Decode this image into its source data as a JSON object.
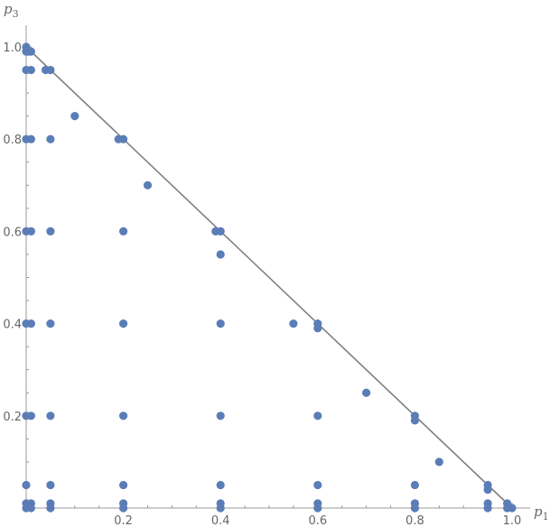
{
  "chart_data": {
    "type": "scatter",
    "xlabel": "p",
    "xlabel_sub": "1",
    "ylabel": "p",
    "ylabel_sub": "3",
    "xlim": [
      0,
      1.0
    ],
    "ylim": [
      0,
      1.0
    ],
    "x_ticks": [
      {
        "value": 0.2,
        "label": "0.2"
      },
      {
        "value": 0.4,
        "label": "0.4"
      },
      {
        "value": 0.6,
        "label": "0.6"
      },
      {
        "value": 0.8,
        "label": "0.8"
      },
      {
        "value": 1.0,
        "label": "1.0"
      }
    ],
    "y_ticks": [
      {
        "value": 0.2,
        "label": "0.2"
      },
      {
        "value": 0.4,
        "label": "0.4"
      },
      {
        "value": 0.6,
        "label": "0.6"
      },
      {
        "value": 0.8,
        "label": "0.8"
      },
      {
        "value": 1.0,
        "label": "1.0"
      }
    ],
    "grid": false,
    "point_color": "#5b7db7",
    "line_color": "#808080",
    "reference_line": {
      "from": [
        0,
        1
      ],
      "to": [
        1,
        0
      ]
    },
    "points": [
      [
        0,
        1.0
      ],
      [
        0,
        0.99
      ],
      [
        0.005,
        0.99
      ],
      [
        0.01,
        0.99
      ],
      [
        0,
        0.95
      ],
      [
        0.01,
        0.95
      ],
      [
        0.04,
        0.95
      ],
      [
        0.05,
        0.95
      ],
      [
        0.1,
        0.85
      ],
      [
        0,
        0.8
      ],
      [
        0.01,
        0.8
      ],
      [
        0.05,
        0.8
      ],
      [
        0.19,
        0.8
      ],
      [
        0.2,
        0.8
      ],
      [
        0.25,
        0.7
      ],
      [
        0,
        0.6
      ],
      [
        0.01,
        0.6
      ],
      [
        0.05,
        0.6
      ],
      [
        0.2,
        0.6
      ],
      [
        0.39,
        0.6
      ],
      [
        0.4,
        0.6
      ],
      [
        0.4,
        0.55
      ],
      [
        0,
        0.4
      ],
      [
        0.01,
        0.4
      ],
      [
        0.05,
        0.4
      ],
      [
        0.2,
        0.4
      ],
      [
        0.4,
        0.4
      ],
      [
        0.55,
        0.4
      ],
      [
        0.6,
        0.4
      ],
      [
        0.6,
        0.39
      ],
      [
        0.7,
        0.25
      ],
      [
        0,
        0.2
      ],
      [
        0.01,
        0.2
      ],
      [
        0.05,
        0.2
      ],
      [
        0.2,
        0.2
      ],
      [
        0.4,
        0.2
      ],
      [
        0.6,
        0.2
      ],
      [
        0.8,
        0.2
      ],
      [
        0.8,
        0.19
      ],
      [
        0.85,
        0.1
      ],
      [
        0,
        0.05
      ],
      [
        0.05,
        0.05
      ],
      [
        0.2,
        0.05
      ],
      [
        0.4,
        0.05
      ],
      [
        0.6,
        0.05
      ],
      [
        0.8,
        0.05
      ],
      [
        0.95,
        0.05
      ],
      [
        0.95,
        0.04
      ],
      [
        0,
        0.01
      ],
      [
        0.01,
        0.01
      ],
      [
        0.05,
        0.01
      ],
      [
        0.2,
        0.01
      ],
      [
        0.4,
        0.01
      ],
      [
        0.6,
        0.01
      ],
      [
        0.8,
        0.01
      ],
      [
        0.95,
        0.01
      ],
      [
        0.99,
        0.01
      ],
      [
        0,
        0
      ],
      [
        0.01,
        0
      ],
      [
        0.05,
        0
      ],
      [
        0.2,
        0
      ],
      [
        0.4,
        0
      ],
      [
        0.6,
        0
      ],
      [
        0.8,
        0
      ],
      [
        0.95,
        0
      ],
      [
        0.99,
        0
      ],
      [
        1.0,
        0
      ]
    ]
  }
}
